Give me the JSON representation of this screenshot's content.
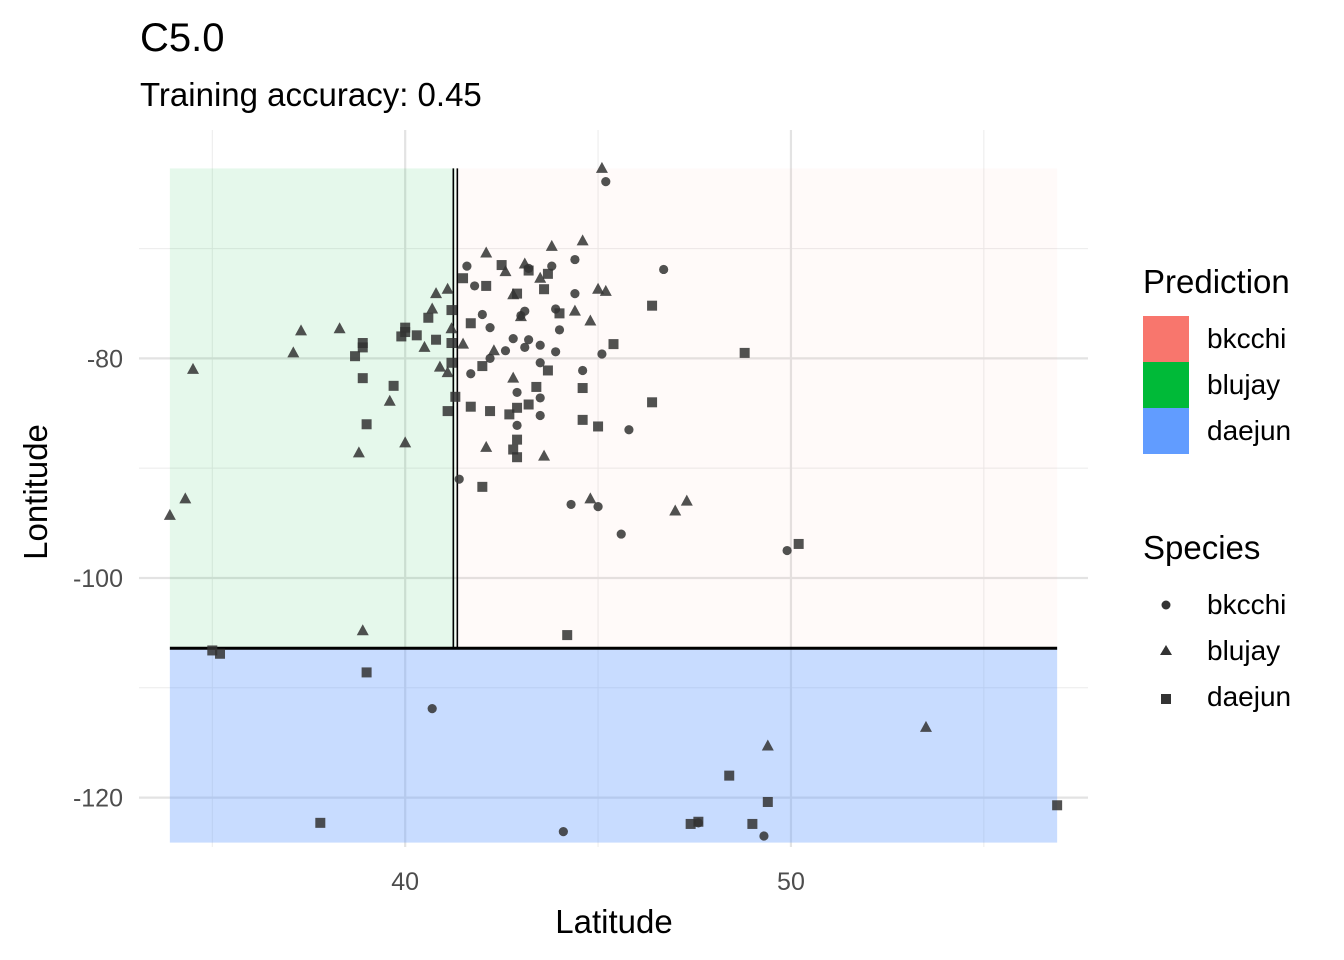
{
  "chart_data": {
    "type": "scatter",
    "title": "C5.0",
    "subtitle": "Training accuracy: 0.45",
    "xlabel": "Latitude",
    "ylabel": "Lontitude",
    "xlim": [
      33.1,
      57.7
    ],
    "ylim": [
      -124.5,
      -59.2
    ],
    "x_ticks": [
      40,
      50
    ],
    "y_ticks": [
      -80,
      -100,
      -120
    ],
    "x_minor": [
      35,
      45,
      55
    ],
    "y_minor": [
      -70,
      -90,
      -110
    ],
    "grid": true,
    "legend_position": "right",
    "prediction_legend": {
      "title": "Prediction",
      "items": [
        {
          "label": "bkcchi",
          "color": "#F8766D"
        },
        {
          "label": "blujay",
          "color": "#00BA38"
        },
        {
          "label": "daejun",
          "color": "#619CFF"
        }
      ]
    },
    "species_legend": {
      "title": "Species",
      "items": [
        {
          "label": "bkcchi",
          "shape": "circle"
        },
        {
          "label": "blujay",
          "shape": "triangle"
        },
        {
          "label": "daejun",
          "shape": "square"
        }
      ]
    },
    "regions": [
      {
        "prediction": "blujay",
        "x": [
          33.9,
          41.3
        ],
        "y": [
          -106.4,
          -62.7
        ]
      },
      {
        "prediction": "bkcchi",
        "x": [
          41.3,
          56.9
        ],
        "y": [
          -106.4,
          -62.7
        ]
      },
      {
        "prediction": "daejun",
        "x": [
          33.9,
          56.9
        ],
        "y": [
          -124.1,
          -106.4
        ]
      }
    ],
    "splits": [
      {
        "orientation": "horizontal",
        "y": -106.4,
        "x": [
          33.9,
          56.9
        ]
      },
      {
        "orientation": "vertical",
        "x": 41.3,
        "y": [
          -106.4,
          -62.7
        ]
      }
    ],
    "series": [
      {
        "name": "bkcchi",
        "shape": "circle",
        "points": [
          [
            45.2,
            -63.9
          ],
          [
            41.6,
            -71.6
          ],
          [
            43.2,
            -71.8
          ],
          [
            43.8,
            -71.6
          ],
          [
            44.4,
            -71.0
          ],
          [
            46.7,
            -71.9
          ],
          [
            41.8,
            -73.4
          ],
          [
            44.4,
            -74.1
          ],
          [
            42.0,
            -76.0
          ],
          [
            43.1,
            -75.7
          ],
          [
            42.2,
            -77.2
          ],
          [
            43.0,
            -76.1
          ],
          [
            43.9,
            -75.5
          ],
          [
            42.8,
            -78.2
          ],
          [
            43.2,
            -78.3
          ],
          [
            43.5,
            -78.8
          ],
          [
            44.0,
            -77.4
          ],
          [
            42.6,
            -79.3
          ],
          [
            43.1,
            -79.0
          ],
          [
            43.9,
            -79.4
          ],
          [
            42.2,
            -80.0
          ],
          [
            43.5,
            -80.4
          ],
          [
            45.1,
            -79.6
          ],
          [
            44.6,
            -81.1
          ],
          [
            41.7,
            -81.4
          ],
          [
            43.5,
            -83.6
          ],
          [
            42.9,
            -83.1
          ],
          [
            43.5,
            -85.2
          ],
          [
            42.9,
            -86.1
          ],
          [
            45.8,
            -86.5
          ],
          [
            41.4,
            -91.0
          ],
          [
            44.3,
            -93.3
          ],
          [
            45.0,
            -93.5
          ],
          [
            45.6,
            -96.0
          ],
          [
            49.9,
            -97.5
          ],
          [
            40.7,
            -111.9
          ],
          [
            44.1,
            -123.1
          ],
          [
            47.6,
            -122.3
          ],
          [
            49.3,
            -123.5
          ]
        ]
      },
      {
        "name": "blujay",
        "shape": "triangle",
        "points": [
          [
            45.1,
            -62.7
          ],
          [
            43.8,
            -69.8
          ],
          [
            44.6,
            -69.3
          ],
          [
            42.1,
            -70.4
          ],
          [
            43.1,
            -71.4
          ],
          [
            42.6,
            -72.1
          ],
          [
            43.5,
            -72.7
          ],
          [
            41.1,
            -73.7
          ],
          [
            45.0,
            -73.7
          ],
          [
            42.8,
            -74.2
          ],
          [
            40.8,
            -74.1
          ],
          [
            40.7,
            -75.5
          ],
          [
            41.5,
            -78.7
          ],
          [
            42.3,
            -79.3
          ],
          [
            41.2,
            -77.3
          ],
          [
            45.2,
            -73.9
          ],
          [
            44.4,
            -75.7
          ],
          [
            43.0,
            -76.2
          ],
          [
            44.8,
            -76.6
          ],
          [
            37.3,
            -77.5
          ],
          [
            38.3,
            -77.3
          ],
          [
            37.1,
            -79.5
          ],
          [
            40.5,
            -79.0
          ],
          [
            40.9,
            -80.8
          ],
          [
            42.8,
            -81.8
          ],
          [
            39.6,
            -83.9
          ],
          [
            41.1,
            -81.3
          ],
          [
            34.5,
            -81.0
          ],
          [
            40.0,
            -87.7
          ],
          [
            42.1,
            -88.1
          ],
          [
            38.8,
            -88.6
          ],
          [
            43.6,
            -88.9
          ],
          [
            33.9,
            -94.3
          ],
          [
            34.3,
            -92.8
          ],
          [
            44.8,
            -92.8
          ],
          [
            47.3,
            -93.0
          ],
          [
            47.0,
            -93.9
          ],
          [
            38.9,
            -104.8
          ],
          [
            53.5,
            -113.6
          ],
          [
            49.4,
            -115.3
          ]
        ]
      },
      {
        "name": "daejun",
        "shape": "square",
        "points": [
          [
            42.5,
            -71.5
          ],
          [
            43.2,
            -72.0
          ],
          [
            43.7,
            -72.3
          ],
          [
            41.5,
            -72.7
          ],
          [
            42.1,
            -73.4
          ],
          [
            43.6,
            -73.7
          ],
          [
            42.9,
            -74.1
          ],
          [
            44.0,
            -75.9
          ],
          [
            46.4,
            -75.2
          ],
          [
            41.2,
            -75.6
          ],
          [
            40.6,
            -76.3
          ],
          [
            41.7,
            -76.8
          ],
          [
            40.0,
            -77.2
          ],
          [
            40.0,
            -77.6
          ],
          [
            40.3,
            -77.9
          ],
          [
            39.9,
            -78.0
          ],
          [
            40.8,
            -78.3
          ],
          [
            45.4,
            -78.7
          ],
          [
            38.9,
            -78.6
          ],
          [
            41.2,
            -78.6
          ],
          [
            38.9,
            -79.0
          ],
          [
            38.7,
            -79.8
          ],
          [
            41.2,
            -80.4
          ],
          [
            42.0,
            -80.7
          ],
          [
            43.7,
            -81.1
          ],
          [
            38.9,
            -81.8
          ],
          [
            39.7,
            -82.5
          ],
          [
            44.6,
            -82.7
          ],
          [
            48.8,
            -79.5
          ],
          [
            43.4,
            -82.6
          ],
          [
            46.4,
            -84.0
          ],
          [
            41.7,
            -84.4
          ],
          [
            41.1,
            -84.8
          ],
          [
            42.2,
            -84.8
          ],
          [
            42.9,
            -84.5
          ],
          [
            43.2,
            -84.2
          ],
          [
            41.3,
            -83.5
          ],
          [
            42.7,
            -85.1
          ],
          [
            44.6,
            -85.6
          ],
          [
            39.0,
            -86.0
          ],
          [
            45.0,
            -86.2
          ],
          [
            42.9,
            -87.4
          ],
          [
            42.8,
            -88.3
          ],
          [
            42.9,
            -89.0
          ],
          [
            42.0,
            -91.7
          ],
          [
            50.2,
            -96.9
          ],
          [
            44.2,
            -105.2
          ],
          [
            35.0,
            -106.6
          ],
          [
            35.2,
            -106.9
          ],
          [
            39.0,
            -108.6
          ],
          [
            48.4,
            -118.0
          ],
          [
            49.4,
            -120.4
          ],
          [
            56.9,
            -120.7
          ],
          [
            37.8,
            -122.3
          ],
          [
            47.6,
            -122.2
          ],
          [
            47.4,
            -122.4
          ],
          [
            49.0,
            -122.4
          ]
        ]
      }
    ]
  }
}
